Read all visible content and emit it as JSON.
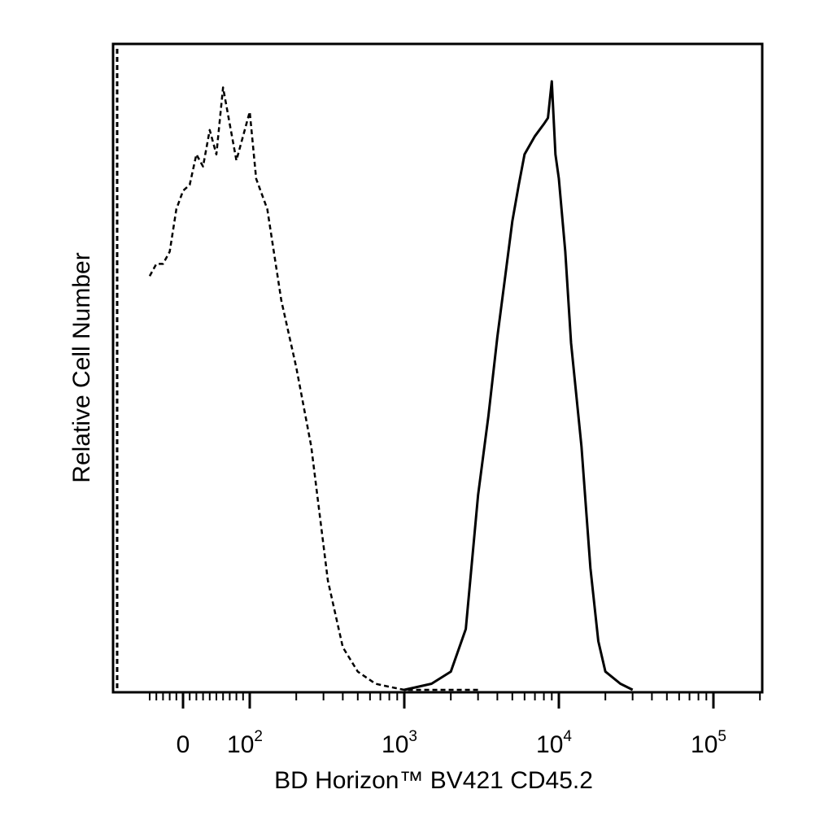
{
  "chart_data": {
    "type": "line",
    "title": "",
    "xlabel": "BD Horizon™ BV421 CD45.2",
    "ylabel": "Relative Cell Number",
    "x_scale": "biexponential (log above 10^2)",
    "xlim": [
      -50,
      250000
    ],
    "ylim": [
      0,
      1
    ],
    "x_ticks": [
      {
        "base": "0",
        "exp": ""
      },
      {
        "base": "10",
        "exp": "2"
      },
      {
        "base": "10",
        "exp": "3"
      },
      {
        "base": "10",
        "exp": "4"
      },
      {
        "base": "10",
        "exp": "5"
      }
    ],
    "x_tick_values": [
      0,
      100,
      1000,
      10000,
      100000
    ],
    "grid": false,
    "legend": "none",
    "series": [
      {
        "style": "dashed",
        "x": [
          -50,
          -40,
          -30,
          -20,
          -10,
          0,
          10,
          20,
          30,
          40,
          50,
          60,
          70,
          80,
          90,
          100,
          110,
          130,
          160,
          200,
          250,
          320,
          400,
          500,
          650,
          800,
          1000,
          1500,
          3000
        ],
        "y": [
          0.68,
          0.7,
          0.7,
          0.72,
          0.79,
          0.82,
          0.83,
          0.88,
          0.86,
          0.92,
          0.88,
          0.99,
          0.93,
          0.87,
          0.91,
          0.95,
          0.84,
          0.79,
          0.64,
          0.53,
          0.4,
          0.18,
          0.07,
          0.03,
          0.01,
          0.005,
          0.0,
          0.0,
          0.0
        ]
      },
      {
        "style": "solid",
        "x": [
          1000,
          1500,
          2000,
          2500,
          3000,
          3500,
          4000,
          4500,
          5000,
          5500,
          6000,
          7000,
          8000,
          8500,
          9000,
          9500,
          10000,
          11000,
          12000,
          14000,
          16000,
          18000,
          20000,
          25000,
          30000
        ],
        "y": [
          0.0,
          0.01,
          0.03,
          0.1,
          0.32,
          0.45,
          0.58,
          0.68,
          0.77,
          0.83,
          0.88,
          0.91,
          0.93,
          0.94,
          1.0,
          0.88,
          0.84,
          0.72,
          0.57,
          0.4,
          0.2,
          0.08,
          0.03,
          0.01,
          0.0
        ]
      }
    ]
  }
}
